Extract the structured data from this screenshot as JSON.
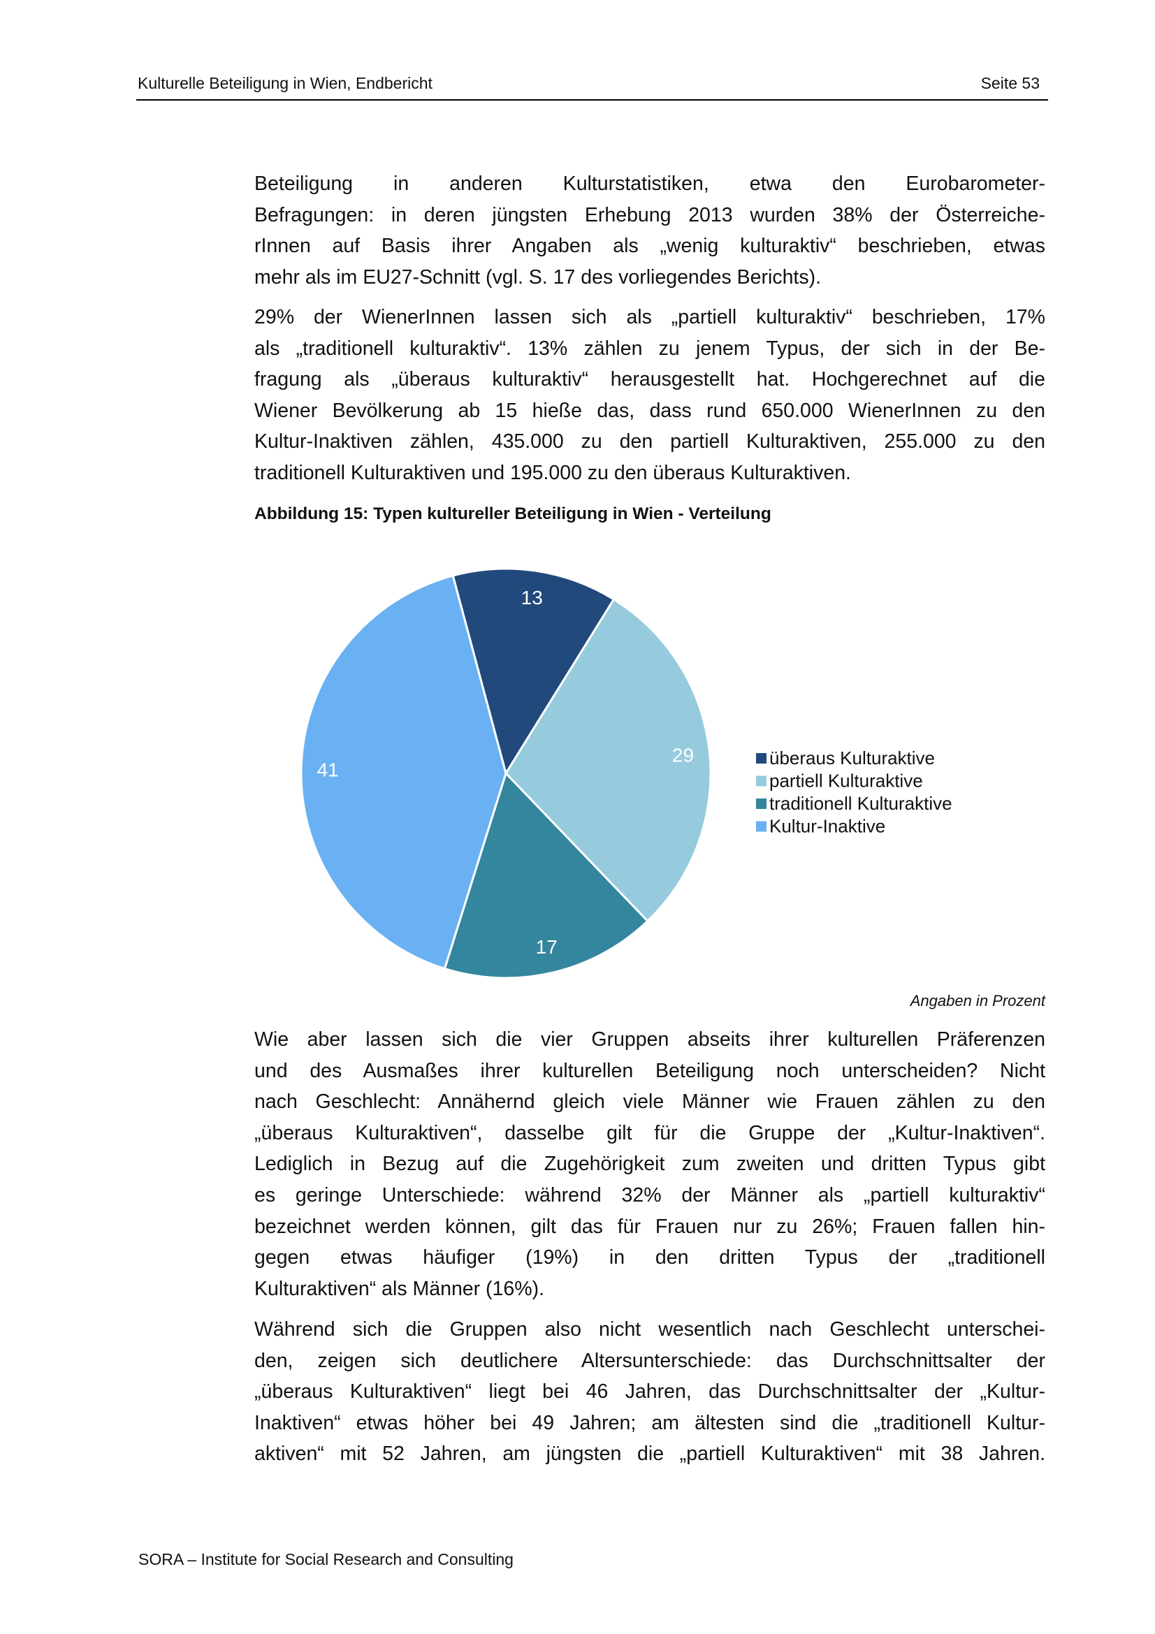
{
  "header": {
    "title": "Kulturelle Beteiligung in Wien, Endbericht",
    "page": "Seite 53"
  },
  "paragraphs": [
    [
      "Beteiligung in anderen Kulturstatistiken, etwa den Eurobarometer-",
      "Befragungen: in deren jüngsten Erhebung 2013 wurden 38% der Österreiche-",
      "rInnen auf Basis ihrer Angaben als „wenig kulturaktiv“ beschrieben, etwas",
      "mehr als im EU27-Schnitt (vgl. S. 17 des vorliegendes Berichts)."
    ],
    [
      "29% der WienerInnen lassen sich als „partiell kulturaktiv“ beschrieben, 17%",
      "als „traditionell kulturaktiv“. 13% zählen zu jenem Typus, der sich in der Be-",
      "fragung als „überaus kulturaktiv“ herausgestellt hat. Hochgerechnet auf die",
      "Wiener Bevölkerung ab 15 hieße das, dass rund 650.000 WienerInnen zu den",
      "Kultur-Inaktiven zählen, 435.000 zu den partiell Kulturaktiven, 255.000 zu den",
      "traditionell Kulturaktiven und 195.000 zu den überaus Kulturaktiven."
    ],
    [
      "Wie aber lassen sich die vier Gruppen abseits ihrer kulturellen Präferenzen",
      "und des Ausmaßes ihrer kulturellen Beteiligung noch unterscheiden? Nicht",
      "nach Geschlecht: Annähernd gleich viele Männer wie Frauen zählen zu den",
      "„überaus Kulturaktiven“, dasselbe gilt für die Gruppe der „Kultur-Inaktiven“.",
      "Lediglich in Bezug auf die Zugehörigkeit zum zweiten und dritten Typus gibt",
      "es geringe Unterschiede: während 32% der Männer als „partiell kulturaktiv“",
      "bezeichnet werden können, gilt das für Frauen nur zu 26%; Frauen fallen hin-",
      "gegen etwas häufiger (19%) in den dritten Typus der „traditionell",
      "Kulturaktiven“ als Männer (16%)."
    ],
    [
      "Während sich die Gruppen also nicht wesentlich nach Geschlecht unterschei-",
      "den, zeigen sich deutlichere Altersunterschiede: das Durchschnittsalter der",
      "„überaus Kulturaktiven“ liegt bei 46 Jahren, das Durchschnittsalter der „Kultur-",
      "Inaktiven“ etwas höher bei 49 Jahren; am ältesten sind die „traditionell Kultur-",
      "aktiven“ mit 52 Jahren, am jüngsten die „partiell Kulturaktiven“ mit 38 Jahren."
    ]
  ],
  "figure": {
    "caption": "Abbildung 15: Typen kultureller Beteiligung in Wien - Verteilung",
    "note": "Angaben in Prozent"
  },
  "chart_data": {
    "type": "pie",
    "title": "",
    "categories": [
      "überaus Kulturaktive",
      "partiell Kulturaktive",
      "traditionell Kulturaktive",
      "Kultur-Inaktive"
    ],
    "values": [
      13,
      29,
      17,
      41
    ],
    "data_labels": [
      "13",
      "29",
      "17",
      "41"
    ],
    "colors": [
      "#21497c",
      "#95cbdc",
      "#33869d",
      "#69b1f2"
    ],
    "legend": "right",
    "direction": "clockwise"
  },
  "footer": {
    "text": "SORA – Institute for Social Research and Consulting"
  }
}
